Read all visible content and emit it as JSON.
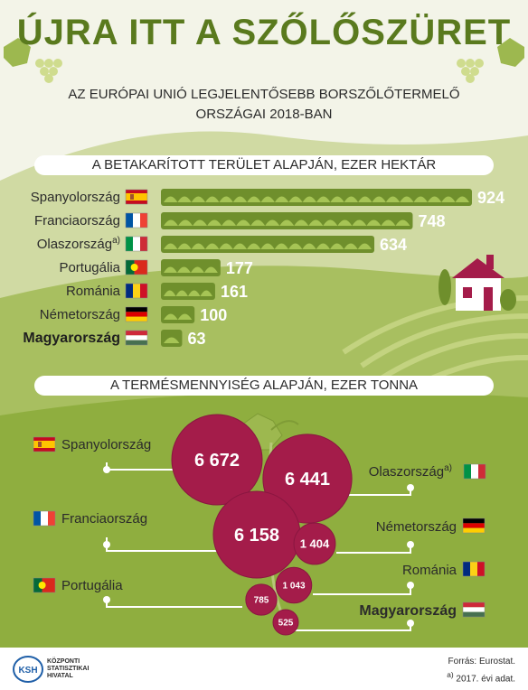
{
  "header": {
    "title": "ÚJRA ITT A SZŐLŐSZÜRET",
    "subtitle_line1": "AZ EURÓPAI UNIÓ LEGJELENTŐSEBB BORSZŐLŐTERMELŐ",
    "subtitle_line2": "ORSZÁGAI 2018-BAN"
  },
  "colors": {
    "accent_green": "#5a7a1e",
    "bar_green": "#8aac3e",
    "grape": "#a41c4a",
    "background": "#f3f4e8"
  },
  "chart_data": [
    {
      "type": "bar",
      "orientation": "horizontal",
      "title": "A BETAKARÍTOTT TERÜLET ALAPJÁN, EZER HEKTÁR",
      "categories": [
        "Spanyolország",
        "Franciaország",
        "Olaszország",
        "Portugália",
        "Románia",
        "Németország",
        "Magyarország"
      ],
      "category_superscripts": [
        "",
        "",
        "a)",
        "",
        "",
        "",
        ""
      ],
      "flags": [
        "spain-flag-icon",
        "france-flag-icon",
        "italy-flag-icon",
        "portugal-flag-icon",
        "romania-flag-icon",
        "germany-flag-icon",
        "hungary-flag-icon"
      ],
      "values": [
        924,
        748,
        634,
        177,
        161,
        100,
        63
      ],
      "value_labels": [
        "924",
        "748",
        "634",
        "177",
        "161",
        "100",
        "63"
      ],
      "highlight": "Magyarország",
      "xlim": [
        0,
        924
      ]
    },
    {
      "type": "bubble",
      "title": "A TERMÉSMENNYISÉG ALAPJÁN, EZER TONNA",
      "categories": [
        "Spanyolország",
        "Olaszország",
        "Franciaország",
        "Németország",
        "Románia",
        "Portugália",
        "Magyarország"
      ],
      "category_superscripts": [
        "",
        "a)",
        "",
        "",
        "",
        "",
        ""
      ],
      "flags": [
        "spain-flag-icon",
        "italy-flag-icon",
        "france-flag-icon",
        "germany-flag-icon",
        "romania-flag-icon",
        "portugal-flag-icon",
        "hungary-flag-icon"
      ],
      "values": [
        6672,
        6441,
        6158,
        1404,
        1043,
        785,
        525
      ],
      "value_labels": [
        "6 672",
        "6 441",
        "6 158",
        "1 404",
        "1 043",
        "785",
        "525"
      ],
      "highlight": "Magyarország"
    }
  ],
  "footer": {
    "logo_abbr": "KSH",
    "logo_text": "KÖZPONTI STATISZTIKAI HIVATAL",
    "source": "Forrás: Eurostat.",
    "note_mark": "a)",
    "note_text": "2017. évi adat."
  }
}
